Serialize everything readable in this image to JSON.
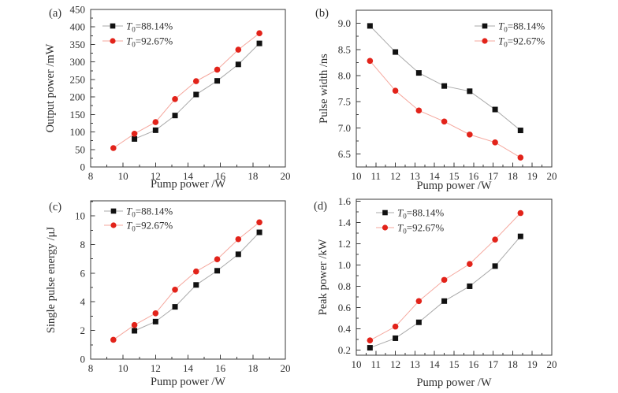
{
  "figure": {
    "background": "#ffffff",
    "panel_tags": [
      "(a)",
      "(b)",
      "(c)",
      "(d)"
    ]
  },
  "palette": {
    "series1_marker": "#111111",
    "series1_line": "#a9a9a9",
    "series2_marker": "#e2231a",
    "series2_line": "#f5a79d",
    "axis": "#3a3a3a",
    "text": "#2f2f2f"
  },
  "legend_entries": [
    {
      "italic": "T",
      "sub": "0",
      "rest": "=88.14%",
      "full": "T0=88.14%"
    },
    {
      "italic": "T",
      "sub": "0",
      "rest": "=92.67%",
      "full": "T0=92.67%"
    }
  ],
  "chart_data": [
    {
      "id": "a",
      "tag": "(a)",
      "type": "line",
      "xlabel": "Pump power /W",
      "ylabel": "Output power /mW",
      "xlim": [
        8,
        20
      ],
      "ylim": [
        0,
        450
      ],
      "xticks": [
        8,
        10,
        12,
        14,
        16,
        18,
        20
      ],
      "xtick_labels": [
        "8",
        "10",
        "12",
        "14",
        "16",
        "18",
        "20"
      ],
      "yticks": [
        0,
        50,
        100,
        150,
        200,
        250,
        300,
        350,
        400,
        450
      ],
      "ytick_labels": [
        "0",
        "50",
        "100",
        "150",
        "200",
        "250",
        "300",
        "350",
        "400",
        "450"
      ],
      "x_minor_step": 1,
      "y_minor_step": 25,
      "legend_position": "top-left",
      "grid": false,
      "series": [
        {
          "name": "T0=88.14%",
          "marker": "square",
          "x": [
            10.7,
            12.0,
            13.2,
            14.5,
            15.8,
            17.1,
            18.4
          ],
          "y": [
            80,
            105,
            147,
            207,
            246,
            293,
            353
          ]
        },
        {
          "name": "T0=92.67%",
          "marker": "circle",
          "x": [
            9.4,
            10.7,
            12.0,
            13.2,
            14.5,
            15.8,
            17.1,
            18.4
          ],
          "y": [
            54,
            95,
            128,
            194,
            245,
            278,
            335,
            382
          ]
        }
      ]
    },
    {
      "id": "b",
      "tag": "(b)",
      "type": "line",
      "xlabel": "Pump power /W",
      "ylabel": "Pulse width /ns",
      "xlim": [
        10,
        20
      ],
      "ylim": [
        6.25,
        9.25
      ],
      "xticks": [
        10,
        11,
        12,
        13,
        14,
        15,
        16,
        17,
        18,
        19,
        20
      ],
      "xtick_labels": [
        "10",
        "11",
        "12",
        "13",
        "14",
        "15",
        "16",
        "17",
        "18",
        "19",
        "20"
      ],
      "yticks": [
        6.5,
        7.0,
        7.5,
        8.0,
        8.5,
        9.0
      ],
      "ytick_labels": [
        "6.5",
        "7.0",
        "7.5",
        "8.0",
        "8.5",
        "9.0"
      ],
      "x_minor_step": 0.5,
      "y_minor_step": 0.25,
      "legend_position": "top-right",
      "grid": false,
      "series": [
        {
          "name": "T0=88.14%",
          "marker": "square",
          "x": [
            10.7,
            12.0,
            13.2,
            14.5,
            15.8,
            17.1,
            18.4
          ],
          "y": [
            8.95,
            8.45,
            8.05,
            7.8,
            7.7,
            7.35,
            6.95
          ]
        },
        {
          "name": "T0=92.67%",
          "marker": "circle",
          "x": [
            10.7,
            12.0,
            13.2,
            14.5,
            15.8,
            17.1,
            18.4
          ],
          "y": [
            8.28,
            7.71,
            7.33,
            7.12,
            6.87,
            6.72,
            6.43
          ]
        }
      ]
    },
    {
      "id": "c",
      "tag": "(c)",
      "type": "line",
      "xlabel": "Pump power /W",
      "ylabel": "Single pulse energy /μJ",
      "xlim": [
        8,
        20
      ],
      "ylim": [
        0,
        11.05
      ],
      "xticks": [
        8,
        10,
        12,
        14,
        16,
        18,
        20
      ],
      "xtick_labels": [
        "8",
        "10",
        "12",
        "14",
        "16",
        "18",
        "20"
      ],
      "yticks": [
        0,
        2,
        4,
        6,
        8,
        10
      ],
      "ytick_labels": [
        "0",
        "2",
        "4",
        "6",
        "8",
        "10"
      ],
      "x_minor_step": 1,
      "y_minor_step": 1,
      "legend_position": "top-left",
      "grid": false,
      "series": [
        {
          "name": "T0=88.14%",
          "marker": "square",
          "x": [
            10.7,
            12.0,
            13.2,
            14.5,
            15.8,
            17.1,
            18.4
          ],
          "y": [
            1.98,
            2.62,
            3.65,
            5.18,
            6.17,
            7.32,
            8.85
          ]
        },
        {
          "name": "T0=92.67%",
          "marker": "circle",
          "x": [
            9.4,
            10.7,
            12.0,
            13.2,
            14.5,
            15.8,
            17.1,
            18.4
          ],
          "y": [
            1.35,
            2.38,
            3.2,
            4.85,
            6.12,
            6.97,
            8.37,
            9.55
          ]
        }
      ]
    },
    {
      "id": "d",
      "tag": "(d)",
      "type": "line",
      "xlabel": "Pump power /W",
      "ylabel": "Peak power /kW",
      "xlim": [
        10,
        20
      ],
      "ylim": [
        0.15,
        1.62
      ],
      "xticks": [
        10,
        11,
        12,
        13,
        14,
        15,
        16,
        17,
        18,
        19,
        20
      ],
      "xtick_labels": [
        "10",
        "11",
        "12",
        "13",
        "14",
        "15",
        "16",
        "17",
        "18",
        "19",
        "20"
      ],
      "yticks": [
        0.2,
        0.4,
        0.6,
        0.8,
        1.0,
        1.2,
        1.4,
        1.6
      ],
      "ytick_labels": [
        "0.2",
        "0.4",
        "0.6",
        "0.8",
        "1.0",
        "1.2",
        "1.4",
        "1.6"
      ],
      "x_minor_step": 0.5,
      "y_minor_step": 0.1,
      "legend_position": "top-left",
      "grid": false,
      "series": [
        {
          "name": "T0=88.14%",
          "marker": "square",
          "x": [
            10.7,
            12.0,
            13.2,
            14.5,
            15.8,
            17.1,
            18.4
          ],
          "y": [
            0.22,
            0.31,
            0.46,
            0.66,
            0.8,
            0.99,
            1.27
          ]
        },
        {
          "name": "T0=92.67%",
          "marker": "circle",
          "x": [
            10.7,
            12.0,
            13.2,
            14.5,
            15.8,
            17.1,
            18.4
          ],
          "y": [
            0.29,
            0.42,
            0.66,
            0.86,
            1.01,
            1.24,
            1.49
          ]
        }
      ]
    }
  ]
}
